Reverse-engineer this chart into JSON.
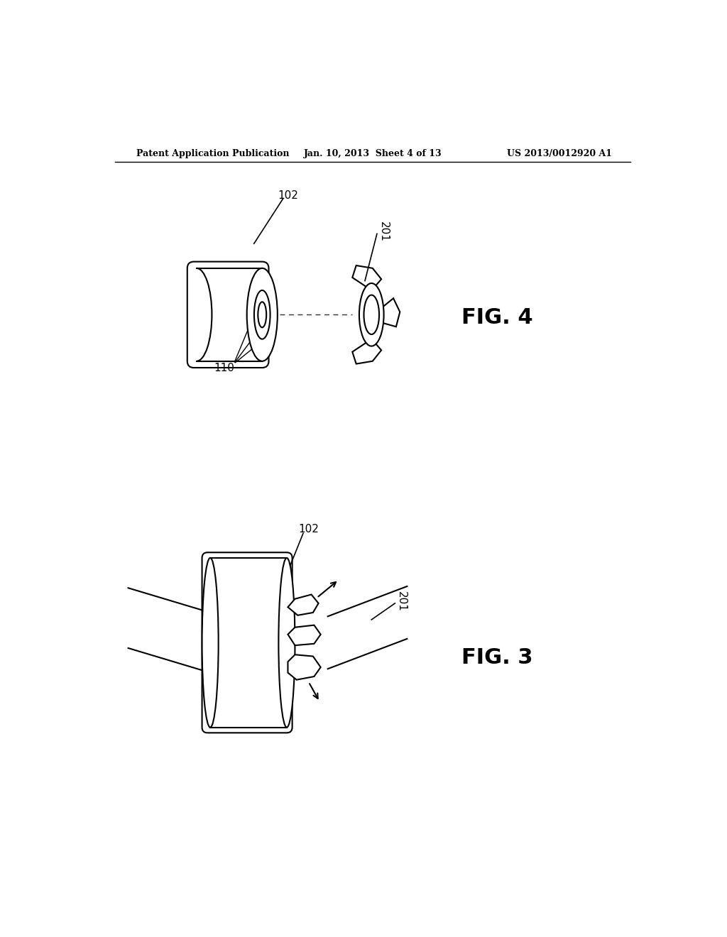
{
  "bg_color": "#ffffff",
  "header_left": "Patent Application Publication",
  "header_center": "Jan. 10, 2013  Sheet 4 of 13",
  "header_right": "US 2013/0012920 A1",
  "fig4_label": "FIG. 4",
  "fig3_label": "FIG. 3",
  "label_102_fig4": "102",
  "label_201_fig4": "201",
  "label_110_fig4": "110",
  "label_102_fig3": "102",
  "label_201_fig3": "201"
}
